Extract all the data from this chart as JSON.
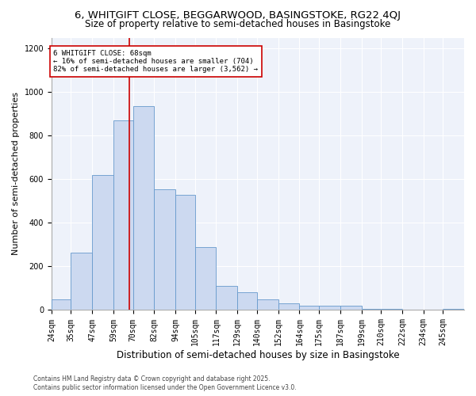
{
  "title": "6, WHITGIFT CLOSE, BEGGARWOOD, BASINGSTOKE, RG22 4QJ",
  "subtitle": "Size of property relative to semi-detached houses in Basingstoke",
  "xlabel": "Distribution of semi-detached houses by size in Basingstoke",
  "ylabel": "Number of semi-detached properties",
  "property_size": 68,
  "annotation_title": "6 WHITGIFT CLOSE: 68sqm",
  "annotation_line1": "← 16% of semi-detached houses are smaller (704)",
  "annotation_line2": "82% of semi-detached houses are larger (3,562) →",
  "footer_line1": "Contains HM Land Registry data © Crown copyright and database right 2025.",
  "footer_line2": "Contains public sector information licensed under the Open Government Licence v3.0.",
  "bar_color": "#ccd9f0",
  "bar_edge_color": "#6699cc",
  "vline_color": "#cc0000",
  "background_color": "#eef2fa",
  "annotation_box_color": "#ffffff",
  "annotation_box_edge": "#cc0000",
  "bins": [
    24,
    35,
    47,
    59,
    70,
    82,
    94,
    105,
    117,
    129,
    140,
    152,
    164,
    175,
    187,
    199,
    210,
    222,
    234,
    245,
    257
  ],
  "counts": [
    50,
    265,
    620,
    870,
    935,
    555,
    530,
    290,
    110,
    80,
    50,
    30,
    20,
    20,
    20,
    5,
    5,
    0,
    0,
    5
  ],
  "ylim": [
    0,
    1250
  ],
  "yticks": [
    0,
    200,
    400,
    600,
    800,
    1000,
    1200
  ],
  "title_fontsize": 9.5,
  "subtitle_fontsize": 8.5,
  "axis_label_fontsize": 8,
  "xlabel_fontsize": 8.5,
  "tick_fontsize": 7,
  "annotation_fontsize": 6.5,
  "footer_fontsize": 5.5
}
